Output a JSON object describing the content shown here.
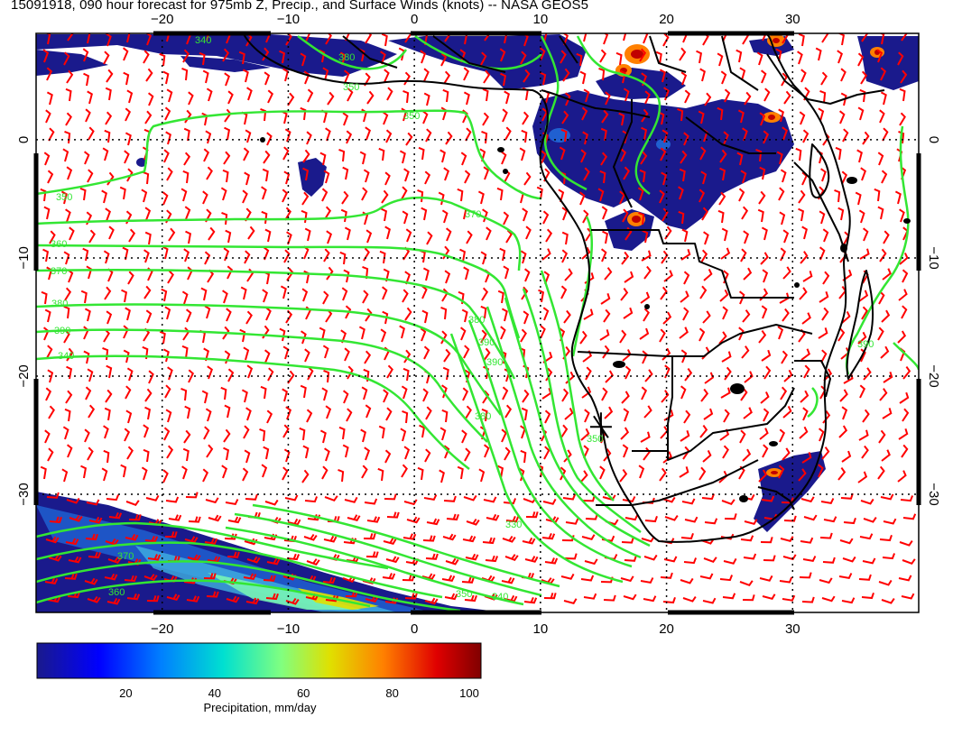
{
  "title": "15091918, 090 hour forecast for 975mb Z, Precip., and Surface Winds (knots) -- NASA GEOS5",
  "map": {
    "lon_range": [
      -30,
      40
    ],
    "lat_range": [
      -40,
      9
    ],
    "lon_ticks": [
      -20,
      -10,
      0,
      10,
      20,
      30
    ],
    "lat_ticks": [
      0,
      -10,
      -20,
      -30
    ],
    "lon_tick_labels": [
      "−20",
      "−10",
      "0",
      "10",
      "20",
      "30"
    ],
    "lat_tick_labels": [
      "0",
      "−10",
      "−20",
      "−30"
    ],
    "grid": "dotted",
    "marker_lonlat": [
      14.8,
      -24.3
    ]
  },
  "contours": {
    "variable": "975mb geopotential height",
    "color": "#33e633",
    "labels": [
      "340",
      "350",
      "360",
      "370",
      "380",
      "390",
      "340",
      "350",
      "370",
      "380",
      "390",
      "390",
      "380",
      "370",
      "360",
      "350",
      "340",
      "330",
      "350",
      "390",
      "380",
      "350"
    ]
  },
  "precip_colorbar": {
    "label": "Precipitation, mm/day",
    "min": 0,
    "max": 100,
    "ticks": [
      20,
      40,
      60,
      80,
      100
    ],
    "tick_labels": [
      "20",
      "40",
      "60",
      "80",
      "100"
    ],
    "colors": [
      "#1a1a8c",
      "#0000ff",
      "#0080ff",
      "#00e0d0",
      "#80ff80",
      "#e0e000",
      "#ff8000",
      "#e00000",
      "#800000"
    ]
  },
  "wind_barb_color": "#ff0000",
  "coastline_color": "#000000"
}
